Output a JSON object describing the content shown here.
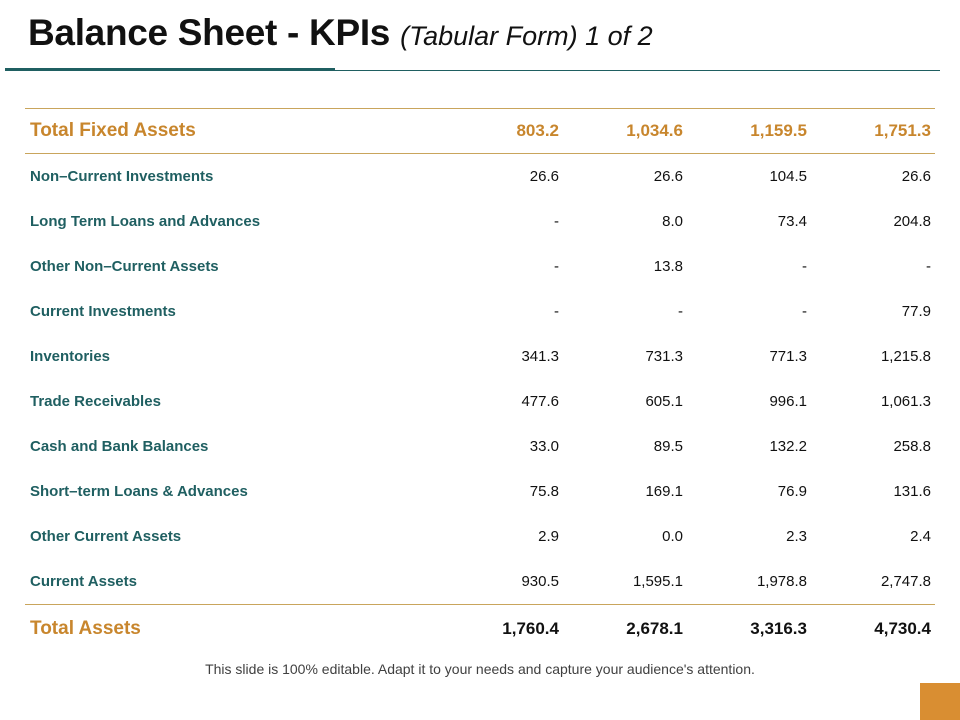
{
  "slide": {
    "title_main": "Balance Sheet - KPIs",
    "title_sub": "(Tabular Form) 1 of 2",
    "footer_note": "This slide is 100% editable. Adapt it to your needs and capture your audience's attention."
  },
  "table": {
    "total_fixed_assets": {
      "label": "Total Fixed Assets",
      "values": [
        "803.2",
        "1,034.6",
        "1,159.5",
        "1,751.3"
      ]
    },
    "rows": [
      {
        "label": "Non–Current Investments",
        "values": [
          "26.6",
          "26.6",
          "104.5",
          "26.6"
        ]
      },
      {
        "label": "Long Term Loans and Advances",
        "values": [
          "-",
          "8.0",
          "73.4",
          "204.8"
        ]
      },
      {
        "label": "Other Non–Current Assets",
        "values": [
          "-",
          "13.8",
          "-",
          "-"
        ]
      },
      {
        "label": "Current Investments",
        "values": [
          "-",
          "-",
          "-",
          "77.9"
        ]
      },
      {
        "label": "Inventories",
        "values": [
          "341.3",
          "731.3",
          "771.3",
          "1,215.8"
        ]
      },
      {
        "label": "Trade Receivables",
        "values": [
          "477.6",
          "605.1",
          "996.1",
          "1,061.3"
        ]
      },
      {
        "label": "Cash and Bank Balances",
        "values": [
          "33.0",
          "89.5",
          "132.2",
          "258.8"
        ]
      },
      {
        "label": "Short–term Loans & Advances",
        "values": [
          "75.8",
          "169.1",
          "76.9",
          "131.6"
        ]
      },
      {
        "label": "Other Current Assets",
        "values": [
          "2.9",
          "0.0",
          "2.3",
          "2.4"
        ]
      },
      {
        "label": "Current Assets",
        "values": [
          "930.5",
          "1,595.1",
          "1,978.8",
          "2,747.8"
        ]
      }
    ],
    "total_assets": {
      "label": "Total Assets",
      "values": [
        "1,760.4",
        "2,678.1",
        "3,316.3",
        "4,730.4"
      ]
    }
  },
  "colors": {
    "accent_gold": "#c8862d",
    "row_label_teal": "#1f5f61",
    "rule_gold": "#c9a55c",
    "corner_orange": "#d98e32"
  }
}
